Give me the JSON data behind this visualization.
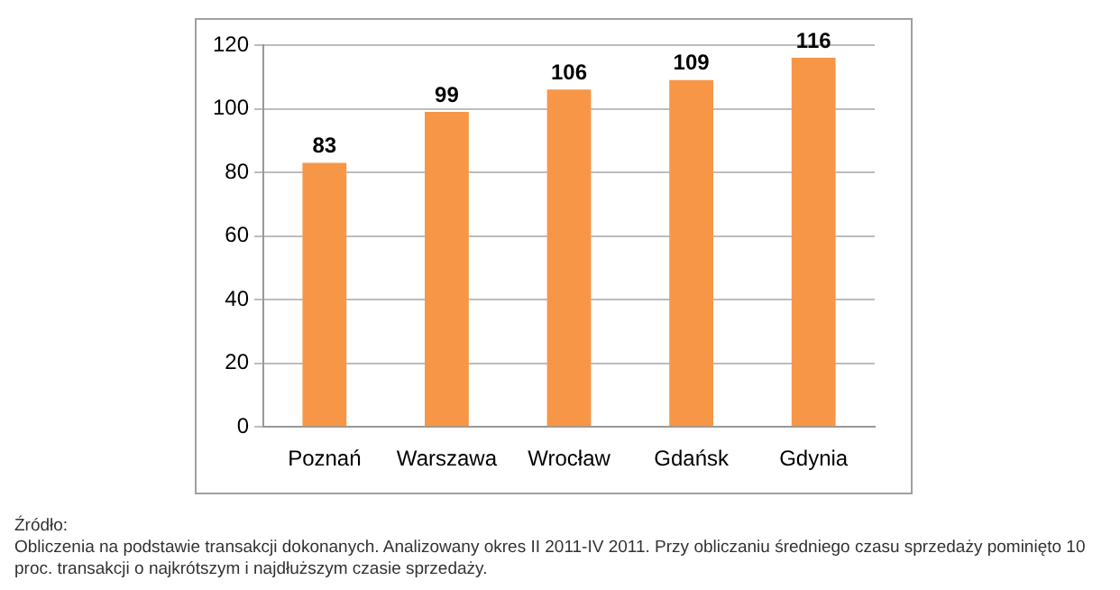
{
  "chart_data": {
    "type": "bar",
    "categories": [
      "Poznań",
      "Warszawa",
      "Wrocław",
      "Gdańsk",
      "Gdynia"
    ],
    "values": [
      83,
      99,
      106,
      109,
      116
    ],
    "color": "#f79646",
    "ylim": [
      0,
      120
    ],
    "yticks": [
      0,
      20,
      40,
      60,
      80,
      100,
      120
    ],
    "grid": "y",
    "data_labels": true,
    "legend": false,
    "annotations": [
      "Źródło:",
      "Obliczenia na podstawie transakcji dokonanych. Analizowany okres II 2011-IV 2011. Przy obliczaniu średniego czasu sprzedaży pominięto 10 proc. transakcji o najkrótszym i najdłuższym czasie sprzedaży."
    ]
  }
}
